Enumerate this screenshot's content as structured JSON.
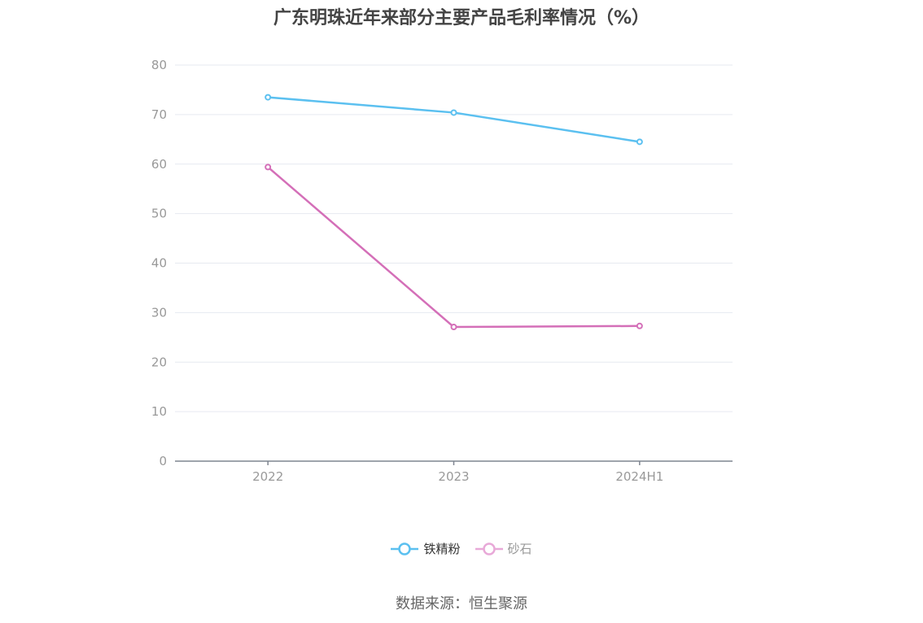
{
  "chart_data": {
    "type": "line",
    "title": "广东明珠近年来部分主要产品毛利率情况（%）",
    "categories": [
      "2022",
      "2023",
      "2024H1"
    ],
    "series": [
      {
        "name": "铁精粉",
        "values": [
          73.5,
          70.4,
          64.5
        ],
        "color": "#5bc0f0"
      },
      {
        "name": "砂石",
        "values": [
          59.4,
          27.1,
          27.3
        ],
        "color": "#d46fb8"
      }
    ],
    "ylim": [
      0,
      80
    ],
    "yticks": [
      "0",
      "10",
      "20",
      "30",
      "40",
      "50",
      "60",
      "70",
      "80"
    ],
    "grid": true,
    "legend_position": "bottom"
  },
  "legend": {
    "items": [
      {
        "label": "铁精粉",
        "color": "#5bc0f0"
      },
      {
        "label": "砂石",
        "color": "#e8a9d8"
      }
    ]
  },
  "source_text": "数据来源：恒生聚源"
}
